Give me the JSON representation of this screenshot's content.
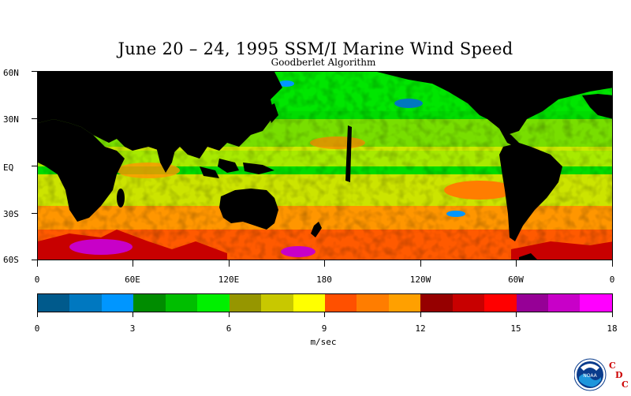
{
  "title": "June 20 – 24, 1995 SSM/I Marine Wind Speed",
  "subtitle": "Goodberlet Algorithm",
  "lat_labels": [
    "60N",
    "30N",
    "EQ",
    "30S",
    "60S"
  ],
  "lon_labels": [
    "0",
    "60E",
    "120E",
    "180",
    "120W",
    "60W",
    "0"
  ],
  "colorbar": {
    "colors": [
      "#005a8c",
      "#0078c0",
      "#0096ff",
      "#008c00",
      "#00be00",
      "#00f000",
      "#969600",
      "#c8c800",
      "#ffff00",
      "#ff5000",
      "#ff7d00",
      "#ffa000",
      "#960000",
      "#c80000",
      "#ff0000",
      "#960096",
      "#c800c8",
      "#ff00ff"
    ],
    "tick_labels": [
      "0",
      "3",
      "6",
      "9",
      "12",
      "15",
      "18"
    ],
    "min": 0,
    "max": 18
  },
  "units": "m/sec",
  "logo": {
    "noaa_text": "NOAA",
    "letters": [
      "C",
      "D",
      "C"
    ]
  }
}
